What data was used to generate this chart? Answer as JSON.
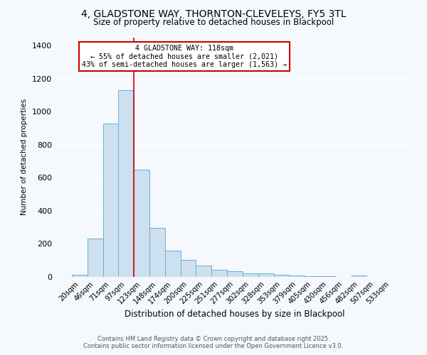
{
  "title_line1": "4, GLADSTONE WAY, THORNTON-CLEVELEYS, FY5 3TL",
  "title_line2": "Size of property relative to detached houses in Blackpool",
  "xlabel": "Distribution of detached houses by size in Blackpool",
  "ylabel": "Number of detached properties",
  "categories": [
    "20sqm",
    "46sqm",
    "71sqm",
    "97sqm",
    "123sqm",
    "148sqm",
    "174sqm",
    "200sqm",
    "225sqm",
    "251sqm",
    "277sqm",
    "302sqm",
    "328sqm",
    "353sqm",
    "379sqm",
    "405sqm",
    "430sqm",
    "456sqm",
    "482sqm",
    "507sqm",
    "533sqm"
  ],
  "values": [
    15,
    230,
    930,
    1130,
    650,
    295,
    160,
    105,
    70,
    45,
    35,
    22,
    20,
    15,
    10,
    5,
    3,
    2,
    8,
    2,
    1
  ],
  "bar_color": "#cce0f0",
  "bar_edge_color": "#6ab0d8",
  "bar_edge_width": 0.7,
  "vline_index": 4,
  "vline_color": "#cc0000",
  "annotation_line1": "4 GLADSTONE WAY: 118sqm",
  "annotation_line2": "← 55% of detached houses are smaller (2,021)",
  "annotation_line3": "43% of semi-detached houses are larger (1,563) →",
  "annotation_box_color": "#ffffff",
  "annotation_box_edge": "#cc0000",
  "background_color": "#f5f8fc",
  "grid_color": "#ffffff",
  "ylim": [
    0,
    1450
  ],
  "yticks": [
    0,
    200,
    400,
    600,
    800,
    1000,
    1200,
    1400
  ],
  "footnote_line1": "Contains HM Land Registry data © Crown copyright and database right 2025.",
  "footnote_line2": "Contains public sector information licensed under the Open Government Licence v3.0."
}
